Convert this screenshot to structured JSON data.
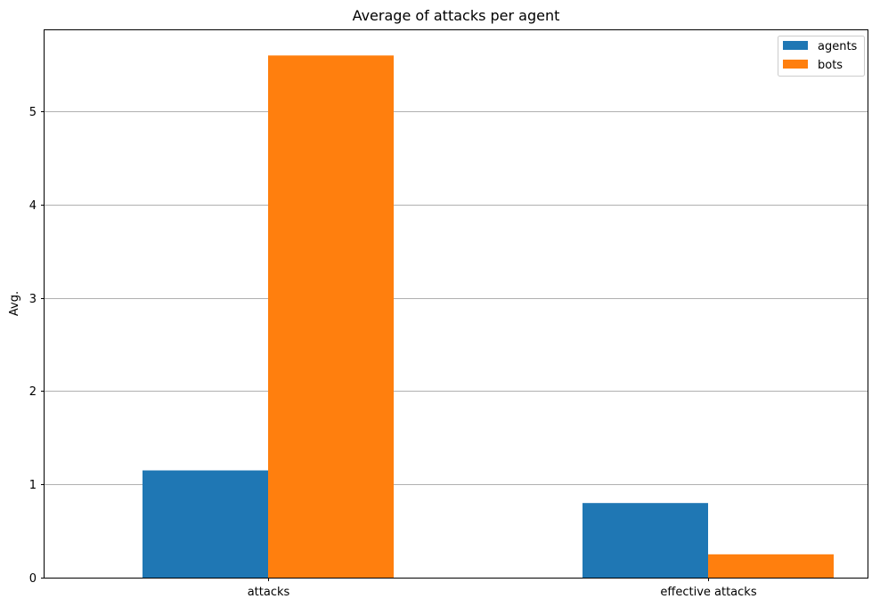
{
  "chart_data": {
    "type": "bar",
    "title": "Average of attacks per agent",
    "xlabel": "",
    "ylabel": "Avg.",
    "categories": [
      "attacks",
      "effective attacks"
    ],
    "series": [
      {
        "name": "agents",
        "values": [
          1.15,
          0.8
        ],
        "color": "#1f77b4"
      },
      {
        "name": "bots",
        "values": [
          5.6,
          0.25
        ],
        "color": "#ff7f0e"
      }
    ],
    "ylim": [
      0,
      5.88
    ],
    "yticks": [
      0,
      1,
      2,
      3,
      4,
      5
    ],
    "grid": "y-major",
    "legend_position": "top-right"
  }
}
